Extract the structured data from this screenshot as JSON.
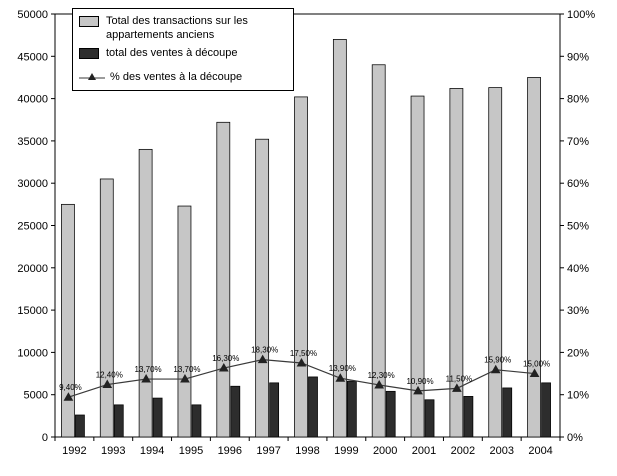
{
  "chart_data": {
    "type": "bar",
    "title": "",
    "categories": [
      "1992",
      "1993",
      "1994",
      "1995",
      "1996",
      "1997",
      "1998",
      "1999",
      "2000",
      "2001",
      "2002",
      "2003",
      "2004"
    ],
    "series": [
      {
        "name": "Total des transactions sur les appartements anciens",
        "kind": "bar",
        "axis": "left",
        "color": "#c6c6c6",
        "values": [
          27500,
          30500,
          34000,
          27300,
          37200,
          35200,
          40200,
          47000,
          44000,
          40300,
          41200,
          41300,
          42500
        ]
      },
      {
        "name": "total des ventes à découpe",
        "kind": "bar",
        "axis": "left",
        "color": "#2d2d2d",
        "values": [
          2600,
          3800,
          4600,
          3800,
          6000,
          6400,
          7100,
          6600,
          5400,
          4400,
          4800,
          5800,
          6400
        ]
      },
      {
        "name": "% des ventes à la découpe",
        "kind": "line",
        "axis": "right",
        "color": "#3a3a3a",
        "values": [
          9.4,
          12.4,
          13.7,
          13.7,
          16.3,
          18.3,
          17.5,
          13.9,
          12.3,
          10.9,
          11.5,
          15.9,
          15.0
        ],
        "point_labels": [
          "9,40%",
          "12,40%",
          "13,70%",
          "13,70%",
          "16,30%",
          "18,30%",
          "17,50%",
          "13,90%",
          "12,30%",
          "10,90%",
          "11,50%",
          "15,90%",
          "15,00%"
        ]
      }
    ],
    "left_axis": {
      "min": 0,
      "max": 50000,
      "step": 5000
    },
    "right_axis": {
      "min": 0,
      "max": 100,
      "step": 10,
      "suffix": "%"
    },
    "grid": false,
    "legend_position": "top-left-inside"
  },
  "legend": {
    "items": [
      {
        "label": "Total des transactions sur les appartements anciens"
      },
      {
        "label": "total des ventes à découpe"
      },
      {
        "label": "% des ventes à la découpe"
      }
    ]
  },
  "colors": {
    "bar_total": "#c6c6c6",
    "bar_decoupe": "#2d2d2d",
    "line_pct": "#3a3a3a",
    "axis": "#000000",
    "background": "#ffffff"
  }
}
